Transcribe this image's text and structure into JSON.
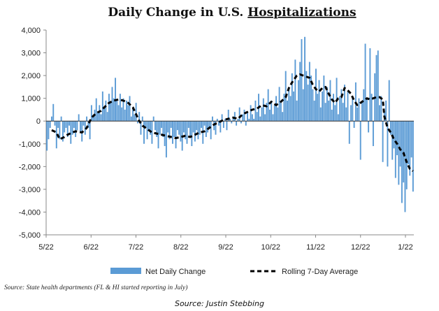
{
  "chart_data": {
    "type": "bar",
    "title_prefix": "Daily Change  in U.S. ",
    "title_underlined": "Hospitalizations",
    "xlabel": "",
    "ylabel": "",
    "ylim": [
      -5000,
      4000
    ],
    "yticks": [
      4000,
      3000,
      2000,
      1000,
      0,
      -1000,
      -2000,
      -3000,
      -4000,
      -5000
    ],
    "ytick_labels": [
      "4,000",
      "3,000",
      "2,000",
      "1,000",
      "0",
      "-1,000",
      "-2,000",
      "-3,000",
      "-4,000",
      "-5,000"
    ],
    "xtick_labels": [
      "5/22",
      "6/22",
      "7/22",
      "8/22",
      "9/22",
      "10/22",
      "11/22",
      "12/22",
      "1/22"
    ],
    "legend_position": "bottom",
    "series": [
      {
        "name": "Net Daily Change",
        "kind": "bar",
        "color": "#5b9bd5",
        "values": [
          -1300,
          -800,
          -300,
          200,
          750,
          -200,
          -1200,
          -300,
          -800,
          200,
          -900,
          -500,
          -300,
          -700,
          -200,
          -1000,
          -600,
          -300,
          -700,
          -400,
          300,
          -500,
          -900,
          -200,
          -600,
          200,
          -300,
          -800,
          700,
          200,
          500,
          1000,
          400,
          700,
          300,
          1300,
          600,
          900,
          400,
          1200,
          800,
          1500,
          1000,
          1900,
          900,
          700,
          1200,
          600,
          1000,
          500,
          900,
          700,
          1100,
          200,
          600,
          300,
          800,
          -100,
          400,
          -600,
          200,
          -1000,
          -300,
          -800,
          -400,
          -600,
          -1000,
          200,
          -400,
          -700,
          -1200,
          -600,
          -300,
          -700,
          -1100,
          -1600,
          -500,
          -800,
          -300,
          -1000,
          -700,
          -1200,
          -400,
          -600,
          -900,
          -1300,
          -500,
          -800,
          -1000,
          -300,
          -700,
          -1100,
          -500,
          -900,
          -400,
          -800,
          -600,
          -300,
          -1000,
          -200,
          -700,
          -500,
          -300,
          -800,
          200,
          -400,
          -600,
          100,
          -200,
          -500,
          300,
          -300,
          100,
          -400,
          500,
          100,
          -100,
          200,
          400,
          -200,
          100,
          600,
          -100,
          300,
          500,
          -200,
          400,
          100,
          700,
          300,
          100,
          900,
          400,
          1200,
          200,
          600,
          1000,
          300,
          800,
          1400,
          500,
          900,
          300,
          700,
          1100,
          600,
          1500,
          800,
          400,
          1200,
          2200,
          900,
          1500,
          1100,
          2100,
          1300,
          2700,
          900,
          1800,
          2600,
          3600,
          1400,
          3700,
          2200,
          1600,
          2600,
          2000,
          1400,
          900,
          2300,
          1200,
          1800,
          600,
          1300,
          2000,
          800,
          1500,
          900,
          1800,
          500,
          1200,
          700,
          1900,
          300,
          1100,
          1400,
          800,
          1600,
          600,
          1300,
          -1000,
          700,
          1100,
          -300,
          1700,
          600,
          1000,
          -1700,
          900,
          1400,
          3400,
          1000,
          -500,
          3200,
          1200,
          -1100,
          2100,
          2900,
          3100,
          700,
          1100,
          -1800,
          400,
          900,
          -2000,
          1800,
          -600,
          -1700,
          -1200,
          -2500,
          -1500,
          -2800,
          -2000,
          -3600,
          -2700,
          -4000,
          -3000,
          -1900,
          -2400,
          -1600,
          -3100
        ]
      },
      {
        "name": "Rolling 7-Day Average",
        "kind": "line",
        "color": "#000000",
        "points": [
          [
            3,
            -400
          ],
          [
            6,
            -500
          ],
          [
            8,
            -800
          ],
          [
            11,
            -700
          ],
          [
            13,
            -600
          ],
          [
            16,
            -500
          ],
          [
            18,
            -450
          ],
          [
            22,
            -500
          ],
          [
            25,
            -300
          ],
          [
            28,
            150
          ],
          [
            31,
            350
          ],
          [
            34,
            450
          ],
          [
            36,
            600
          ],
          [
            39,
            800
          ],
          [
            42,
            900
          ],
          [
            45,
            950
          ],
          [
            48,
            900
          ],
          [
            51,
            800
          ],
          [
            54,
            600
          ],
          [
            56,
            300
          ],
          [
            58,
            0
          ],
          [
            60,
            -200
          ],
          [
            63,
            -350
          ],
          [
            66,
            -500
          ],
          [
            69,
            -550
          ],
          [
            72,
            -600
          ],
          [
            75,
            -650
          ],
          [
            78,
            -700
          ],
          [
            81,
            -750
          ],
          [
            84,
            -700
          ],
          [
            87,
            -650
          ],
          [
            90,
            -700
          ],
          [
            93,
            -600
          ],
          [
            96,
            -500
          ],
          [
            99,
            -450
          ],
          [
            102,
            -300
          ],
          [
            105,
            -150
          ],
          [
            108,
            -50
          ],
          [
            111,
            50
          ],
          [
            114,
            100
          ],
          [
            117,
            150
          ],
          [
            120,
            100
          ],
          [
            123,
            300
          ],
          [
            126,
            400
          ],
          [
            129,
            500
          ],
          [
            132,
            550
          ],
          [
            135,
            700
          ],
          [
            138,
            650
          ],
          [
            141,
            850
          ],
          [
            144,
            700
          ],
          [
            147,
            850
          ],
          [
            150,
            1050
          ],
          [
            152,
            1450
          ],
          [
            154,
            1700
          ],
          [
            157,
            2000
          ],
          [
            159,
            2050
          ],
          [
            161,
            2000
          ],
          [
            163,
            1950
          ],
          [
            165,
            1900
          ],
          [
            167,
            1600
          ],
          [
            169,
            1400
          ],
          [
            171,
            1300
          ],
          [
            173,
            1450
          ],
          [
            175,
            1500
          ],
          [
            177,
            1200
          ],
          [
            179,
            950
          ],
          [
            181,
            800
          ],
          [
            183,
            1000
          ],
          [
            185,
            1050
          ],
          [
            187,
            1450
          ],
          [
            189,
            1350
          ],
          [
            191,
            1200
          ],
          [
            193,
            900
          ],
          [
            195,
            700
          ],
          [
            197,
            800
          ],
          [
            199,
            900
          ],
          [
            201,
            1000
          ],
          [
            203,
            950
          ],
          [
            205,
            1000
          ],
          [
            207,
            1050
          ],
          [
            209,
            1050
          ],
          [
            211,
            950
          ],
          [
            212,
            200
          ],
          [
            214,
            -300
          ],
          [
            216,
            -500
          ],
          [
            218,
            -800
          ],
          [
            220,
            -1000
          ],
          [
            222,
            -1250
          ],
          [
            224,
            -1400
          ],
          [
            226,
            -1800
          ],
          [
            228,
            -2100
          ],
          [
            230,
            -2200
          ]
        ]
      }
    ]
  },
  "source_line": "Source: State health departments (FL & HI started reporting in July)",
  "attribution": "Source: Justin Stebbing"
}
